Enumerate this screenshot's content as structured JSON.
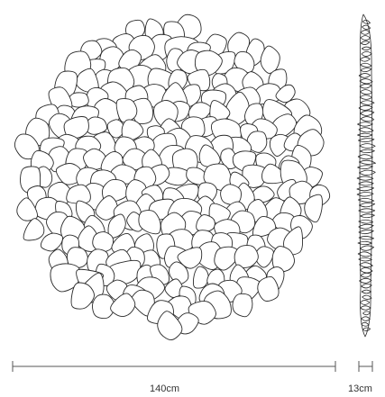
{
  "dimensions": {
    "width_label": "140cm",
    "depth_label": "13cm"
  },
  "colors": {
    "stroke": "#2a2a2a",
    "fill": "#ffffff",
    "dimension_line": "#555555"
  }
}
